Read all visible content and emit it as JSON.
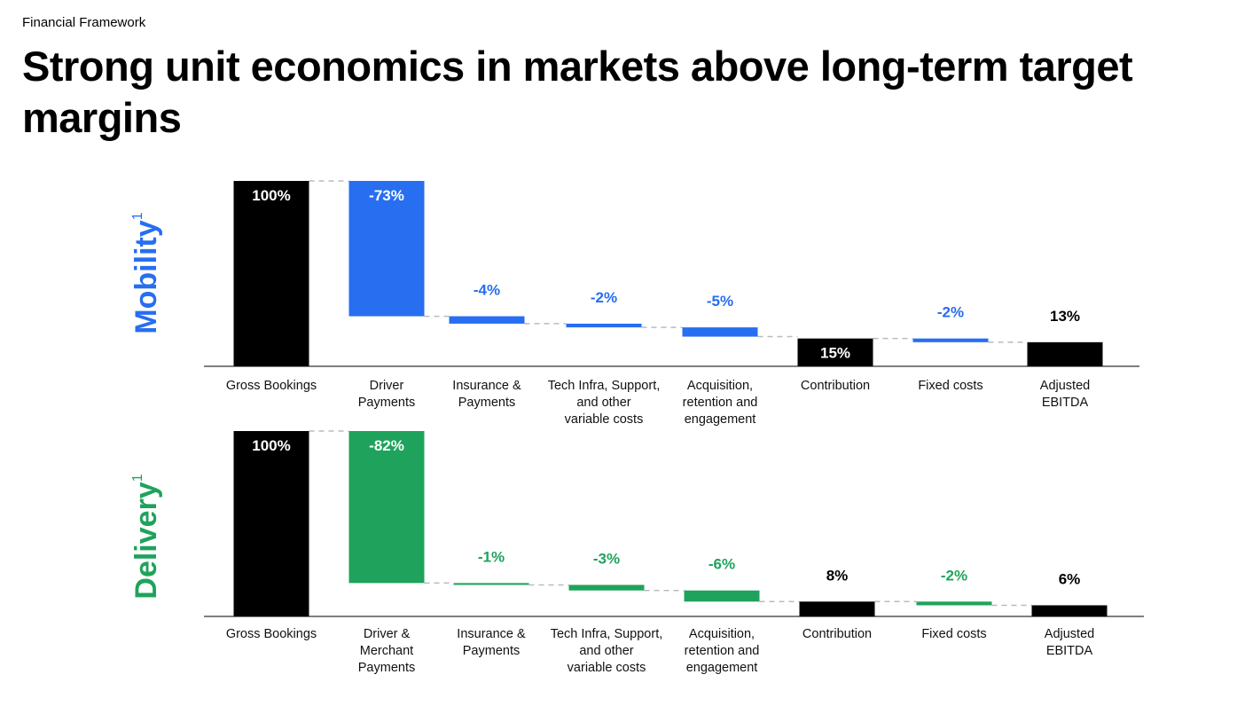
{
  "header": {
    "section": "Financial Framework",
    "title": "Strong unit economics in markets above long-term target margins"
  },
  "chart_data": [
    {
      "type": "waterfall",
      "label": "Mobility",
      "label_mark": "1",
      "color": "#276ef1",
      "categories": [
        "Gross Bookings",
        "Driver\nPayments",
        "Insurance &\nPayments",
        "Tech Infra, Support,\nand other\nvariable costs",
        "Acquisition,\nretention and\nengagement",
        "Contribution",
        "Fixed costs",
        "Adjusted\nEBITDA"
      ],
      "measure": [
        "absolute",
        "relative",
        "relative",
        "relative",
        "relative",
        "absolute",
        "relative",
        "absolute"
      ],
      "values": [
        100,
        -73,
        -4,
        -2,
        -5,
        15,
        -2,
        13
      ],
      "value_labels": [
        "100%",
        "-73%",
        "-4%",
        "-2%",
        "-5%",
        "15%",
        "-2%",
        "13%"
      ]
    },
    {
      "type": "waterfall",
      "label": "Delivery",
      "label_mark": "1",
      "color": "#1fa35c",
      "categories": [
        "Gross Bookings",
        "Driver &\nMerchant\nPayments",
        "Insurance &\nPayments",
        "Tech Infra, Support,\nand other\nvariable costs",
        "Acquisition,\nretention and\nengagement",
        "Contribution",
        "Fixed costs",
        "Adjusted\nEBITDA"
      ],
      "measure": [
        "absolute",
        "relative",
        "relative",
        "relative",
        "relative",
        "absolute",
        "relative",
        "absolute"
      ],
      "values": [
        100,
        -82,
        -1,
        -3,
        -6,
        8,
        -2,
        6
      ],
      "value_labels": [
        "100%",
        "-82%",
        "-1%",
        "-3%",
        "-6%",
        "8%",
        "-2%",
        "6%"
      ]
    }
  ]
}
